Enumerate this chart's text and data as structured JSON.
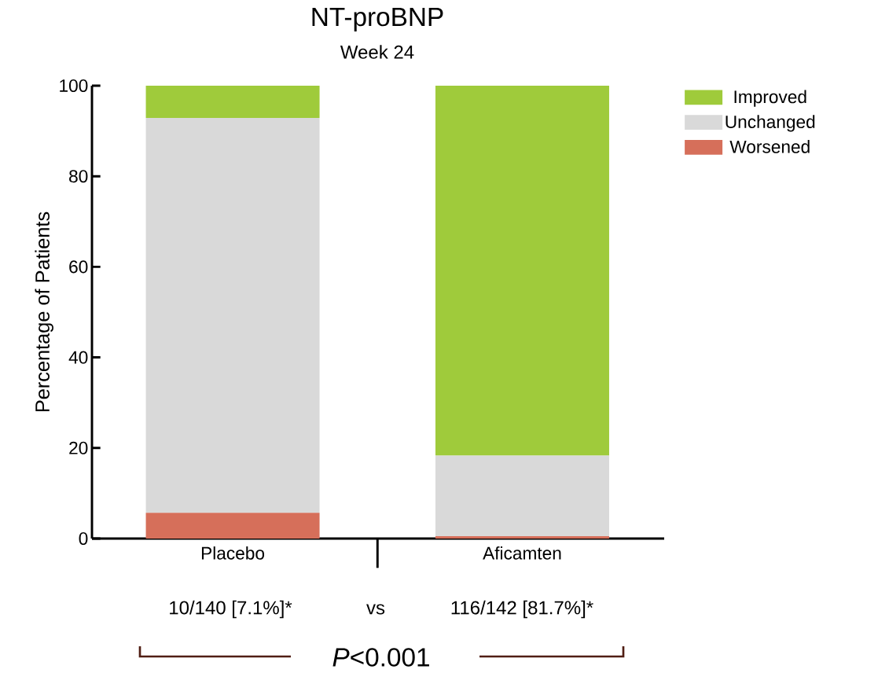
{
  "chart_data": {
    "type": "bar",
    "title": "NT-proBNP",
    "subtitle": "Week 24",
    "ylabel": "Percentage of Patients",
    "categories": [
      "Placebo",
      "Aficamten"
    ],
    "stacked": true,
    "series": [
      {
        "name": "Worsened",
        "color": "#d66f5a",
        "values": [
          5.7,
          0.5
        ]
      },
      {
        "name": "Unchanged",
        "color": "#d9d9d9",
        "values": [
          87.2,
          17.8
        ]
      },
      {
        "name": "Improved",
        "color": "#9fcb3b",
        "values": [
          7.1,
          81.7
        ]
      }
    ],
    "ylim": [
      0,
      100
    ],
    "yticks": [
      0,
      20,
      40,
      60,
      80,
      100
    ],
    "grid": false,
    "legend": "top right",
    "annotations": [
      "10/140 [7.1%]*",
      "vs",
      "116/142 [81.7%]*",
      "*P*<0.001"
    ]
  }
}
